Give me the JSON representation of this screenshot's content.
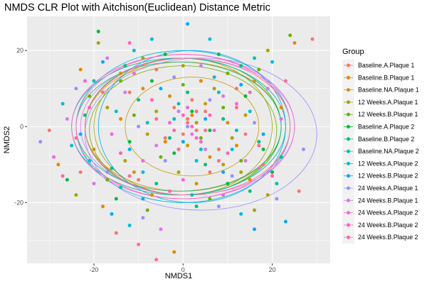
{
  "chart_data": {
    "type": "scatter",
    "title": "NMDS CLR Plot with Aitchison(Euclidean) Distance Metric",
    "xlabel": "NMDS1",
    "ylabel": "NMDS2",
    "xlim": [
      -35,
      33
    ],
    "ylim": [
      -36,
      29
    ],
    "xticks": [
      -20,
      0,
      20
    ],
    "yticks": [
      -20,
      0,
      20
    ],
    "grid": true,
    "background": "#EBEBEB",
    "legend": {
      "title": "Group",
      "placement": "right"
    },
    "ellipses": true,
    "series": [
      {
        "name": "Baseline.A.Plaque 1",
        "color": "#F8766D",
        "points": [
          [
            -30,
            -1
          ],
          [
            -23,
            -12
          ],
          [
            -15,
            -28
          ],
          [
            -10,
            -14
          ],
          [
            -4,
            -3
          ],
          [
            -2,
            5
          ],
          [
            0,
            -2
          ],
          [
            1,
            2
          ],
          [
            3,
            -1
          ],
          [
            5,
            4
          ],
          [
            8,
            -6
          ],
          [
            12,
            10
          ],
          [
            18,
            -10
          ],
          [
            26,
            -17
          ],
          [
            29,
            23
          ],
          [
            -12,
            9
          ],
          [
            6,
            -12
          ],
          [
            2,
            7
          ],
          [
            -6,
            15
          ],
          [
            14,
            -2
          ]
        ],
        "ellipse": {
          "cx": -1,
          "cy": 0,
          "rx": 24,
          "ry": 18
        }
      },
      {
        "name": "Baseline.B.Plaque 1",
        "color": "#E58700",
        "points": [
          [
            -28,
            -10
          ],
          [
            -23,
            15
          ],
          [
            -18,
            -21
          ],
          [
            -9,
            10
          ],
          [
            -2,
            -33
          ],
          [
            -4,
            -4
          ],
          [
            2,
            3
          ],
          [
            6,
            -8
          ],
          [
            10,
            1
          ],
          [
            15,
            -14
          ],
          [
            22,
            5
          ],
          [
            25,
            22
          ],
          [
            -14,
            2
          ],
          [
            4,
            12
          ],
          [
            -7,
            -18
          ],
          [
            12,
            -5
          ]
        ],
        "ellipse": {
          "cx": 0,
          "cy": 0,
          "rx": 22,
          "ry": 17
        }
      },
      {
        "name": "Baseline.NA.Plaque 1",
        "color": "#C99800",
        "points": [
          [
            -20,
            -6
          ],
          [
            -14,
            14
          ],
          [
            -8,
            -2
          ],
          [
            -3,
            8
          ],
          [
            1,
            -5
          ],
          [
            5,
            6
          ],
          [
            9,
            -10
          ],
          [
            14,
            3
          ],
          [
            19,
            -18
          ],
          [
            -11,
            -12
          ],
          [
            3,
            -15
          ],
          [
            16,
            12
          ]
        ],
        "ellipse": {
          "cx": 2,
          "cy": 0,
          "rx": 15,
          "ry": 13
        }
      },
      {
        "name": "12 Weeks.A.Plaque 1",
        "color": "#A3A500",
        "points": [
          [
            -24,
            -18
          ],
          [
            -19,
            22
          ],
          [
            -13,
            -9
          ],
          [
            -6,
            4
          ],
          [
            -1,
            -12
          ],
          [
            3,
            1
          ],
          [
            7,
            10
          ],
          [
            11,
            -3
          ],
          [
            16,
            -22
          ],
          [
            19,
            20
          ],
          [
            -9,
            18
          ],
          [
            0,
            16
          ],
          [
            13,
            -12
          ],
          [
            -17,
            5
          ]
        ],
        "ellipse": {
          "cx": 0,
          "cy": 0,
          "rx": 20,
          "ry": 18
        }
      },
      {
        "name": "12 Weeks.B.Plaque 1",
        "color": "#6BB100",
        "points": [
          [
            -21,
            8
          ],
          [
            -17,
            -14
          ],
          [
            -11,
            3
          ],
          [
            -5,
            -8
          ],
          [
            0,
            11
          ],
          [
            4,
            -3
          ],
          [
            9,
            5
          ],
          [
            13,
            -9
          ],
          [
            17,
            15
          ],
          [
            24,
            24
          ],
          [
            -8,
            -22
          ],
          [
            6,
            -19
          ],
          [
            -14,
            12
          ],
          [
            10,
            14
          ]
        ],
        "ellipse": {
          "cx": 0,
          "cy": -1,
          "rx": 21,
          "ry": 17
        }
      },
      {
        "name": "Baseline.A.Plaque 2",
        "color": "#00BA38",
        "points": [
          [
            -26,
            -14
          ],
          [
            -19,
            25
          ],
          [
            -12,
            -4
          ],
          [
            -7,
            12
          ],
          [
            -2,
            -7
          ],
          [
            2,
            4
          ],
          [
            6,
            -1
          ],
          [
            10,
            -15
          ],
          [
            14,
            8
          ],
          [
            18,
            -6
          ],
          [
            -15,
            -19
          ],
          [
            -4,
            19
          ],
          [
            8,
            19
          ],
          [
            20,
            -12
          ]
        ],
        "ellipse": {
          "cx": 0,
          "cy": 0,
          "rx": 22,
          "ry": 18
        }
      },
      {
        "name": "Baseline.B.Plaque 2",
        "color": "#00BF7D",
        "points": [
          [
            -22,
            3
          ],
          [
            -16,
            -11
          ],
          [
            -10,
            7
          ],
          [
            -3,
            -3
          ],
          [
            1,
            9
          ],
          [
            5,
            -10
          ],
          [
            9,
            2
          ],
          [
            13,
            16
          ],
          [
            17,
            -4
          ],
          [
            22,
            -8
          ],
          [
            -13,
            16
          ],
          [
            -6,
            -15
          ],
          [
            3,
            -21
          ],
          [
            15,
            -17
          ]
        ],
        "ellipse": {
          "cx": -1,
          "cy": 0,
          "rx": 23,
          "ry": 17
        }
      },
      {
        "name": "Baseline.NA.Plaque 2",
        "color": "#00C0B8",
        "points": [
          [
            -25,
            -5
          ],
          [
            -20,
            12
          ],
          [
            -14,
            -16
          ],
          [
            -8,
            1
          ],
          [
            -1,
            6
          ],
          [
            4,
            -6
          ],
          [
            8,
            9
          ],
          [
            12,
            -1
          ],
          [
            16,
            18
          ],
          [
            21,
            -15
          ],
          [
            -11,
            20
          ],
          [
            2,
            -18
          ]
        ],
        "ellipse": {
          "cx": -1,
          "cy": 0,
          "rx": 24,
          "ry": 18
        }
      },
      {
        "name": "12 Weeks.A.Plaque 2",
        "color": "#00BCD8",
        "points": [
          [
            -27,
            6
          ],
          [
            -21,
            -9
          ],
          [
            -15,
            4
          ],
          [
            -9,
            -12
          ],
          [
            -2,
            2
          ],
          [
            3,
            -9
          ],
          [
            7,
            13
          ],
          [
            11,
            -6
          ],
          [
            15,
            4
          ],
          [
            20,
            17
          ],
          [
            -7,
            23
          ],
          [
            6,
            23
          ],
          [
            -12,
            -26
          ],
          [
            13,
            -23
          ]
        ],
        "ellipse": {
          "cx": 0,
          "cy": 0,
          "rx": 24,
          "ry": 20
        }
      },
      {
        "name": "12 Weeks.B.Plaque 2",
        "color": "#00A9FF",
        "points": [
          [
            -23,
            -2
          ],
          [
            -18,
            17
          ],
          [
            -12,
            -6
          ],
          [
            -5,
            10
          ],
          [
            0,
            -4
          ],
          [
            5,
            2
          ],
          [
            9,
            -12
          ],
          [
            13,
            11
          ],
          [
            18,
            -2
          ],
          [
            23,
            -25
          ],
          [
            -9,
            -19
          ],
          [
            1,
            27
          ],
          [
            16,
            -27
          ],
          [
            -16,
            -23
          ]
        ],
        "ellipse": {
          "cx": 2,
          "cy": 0,
          "rx": 21,
          "ry": 20
        }
      },
      {
        "name": "24 Weeks.A.Plaque 1",
        "color": "#9590FF",
        "points": [
          [
            -32,
            -4
          ],
          [
            -24,
            10
          ],
          [
            -17,
            -12
          ],
          [
            -10,
            0
          ],
          [
            -4,
            -9
          ],
          [
            1,
            0
          ],
          [
            6,
            7
          ],
          [
            11,
            -13
          ],
          [
            16,
            1
          ],
          [
            21,
            -19
          ],
          [
            27,
            -6
          ],
          [
            -9,
            -24
          ],
          [
            8,
            -21
          ],
          [
            -2,
            13
          ]
        ],
        "ellipse": {
          "cx": 4,
          "cy": -2,
          "rx": 26,
          "ry": 20
        }
      },
      {
        "name": "24 Weeks.B.Plaque 1",
        "color": "#D678EF",
        "points": [
          [
            -26,
            2
          ],
          [
            -20,
            -15
          ],
          [
            -13,
            9
          ],
          [
            -6,
            -5
          ],
          [
            -1,
            4
          ],
          [
            2,
            -2
          ],
          [
            5,
            -6
          ],
          [
            9,
            8
          ],
          [
            14,
            -9
          ],
          [
            19,
            10
          ],
          [
            -17,
            18
          ],
          [
            4,
            16
          ],
          [
            -5,
            -27
          ]
        ],
        "ellipse": {
          "cx": 1,
          "cy": 0,
          "rx": 24,
          "ry": 18
        }
      },
      {
        "name": "24 Weeks.A.Plaque 2",
        "color": "#F763E0",
        "points": [
          [
            -29,
            -8
          ],
          [
            -22,
            12
          ],
          [
            -16,
            -2
          ],
          [
            -9,
            -9
          ],
          [
            -3,
            1
          ],
          [
            1,
            5
          ],
          [
            3,
            -3
          ],
          [
            7,
            -1
          ],
          [
            12,
            6
          ],
          [
            17,
            -11
          ],
          [
            22,
            2
          ],
          [
            -11,
            14
          ],
          [
            0,
            -14
          ],
          [
            9,
            -18
          ]
        ],
        "ellipse": {
          "cx": 0,
          "cy": 0,
          "rx": 25,
          "ry": 19
        }
      },
      {
        "name": "24 Weeks.B.Plaque 2",
        "color": "#FF62BC",
        "points": [
          [
            -27,
            -13
          ],
          [
            -21,
            5
          ],
          [
            -14,
            -7
          ],
          [
            -7,
            7
          ],
          [
            -2,
            -1
          ],
          [
            0,
            3
          ],
          [
            2,
            0
          ],
          [
            4,
            -4
          ],
          [
            6,
            3
          ],
          [
            10,
            -7
          ],
          [
            15,
            9
          ],
          [
            20,
            -13
          ],
          [
            -12,
            22
          ],
          [
            -3,
            -17
          ]
        ],
        "ellipse": {
          "cx": 0,
          "cy": 0,
          "rx": 24,
          "ry": 19
        }
      },
      {
        "name": "24 Weeks.B.Plaque 2",
        "color": "#FF6C91",
        "points": [
          [
            -24,
            -3
          ],
          [
            -18,
            9
          ],
          [
            -12,
            -13
          ],
          [
            -6,
            2
          ],
          [
            -1,
            -6
          ],
          [
            1,
            1
          ],
          [
            3,
            4
          ],
          [
            5,
            -1
          ],
          [
            8,
            -9
          ],
          [
            12,
            5
          ],
          [
            17,
            -5
          ],
          [
            23,
            12
          ],
          [
            -10,
            -31
          ],
          [
            -6,
            -35
          ]
        ],
        "ellipse": {
          "cx": 1,
          "cy": 0,
          "rx": 23,
          "ry": 18
        }
      }
    ]
  }
}
